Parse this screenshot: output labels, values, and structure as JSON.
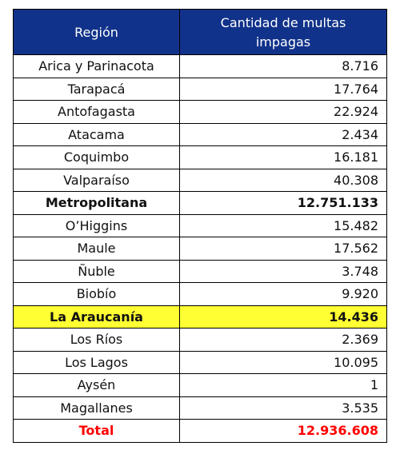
{
  "table": {
    "headers": {
      "region": "Región",
      "count_line1": "Cantidad de multas",
      "count_line2": "impagas"
    },
    "rows": [
      {
        "region": "Arica y Parinacota",
        "value": "8.716"
      },
      {
        "region": "Tarapacá",
        "value": "17.764"
      },
      {
        "region": "Antofagasta",
        "value": "22.924"
      },
      {
        "region": "Atacama",
        "value": "2.434"
      },
      {
        "region": "Coquimbo",
        "value": "16.181"
      },
      {
        "region": "Valparaíso",
        "value": "40.308"
      },
      {
        "region": "Metropolitana",
        "value": "12.751.133"
      },
      {
        "region": "O’Higgins",
        "value": "15.482"
      },
      {
        "region": "Maule",
        "value": "17.562"
      },
      {
        "region": "Ñuble",
        "value": "3.748"
      },
      {
        "region": "Biobío",
        "value": "9.920"
      },
      {
        "region": "La Araucanía",
        "value": "14.436"
      },
      {
        "region": "Los Ríos",
        "value": "2.369"
      },
      {
        "region": "Los Lagos",
        "value": "10.095"
      },
      {
        "region": "Aysén",
        "value": "1"
      },
      {
        "region": "Magallanes",
        "value": "3.535"
      }
    ],
    "total": {
      "label": "Total",
      "value": "12.936.608"
    },
    "colors": {
      "header_bg": "#11328a",
      "highlight_bg": "#ffff33",
      "total_text": "#ff0000"
    }
  }
}
